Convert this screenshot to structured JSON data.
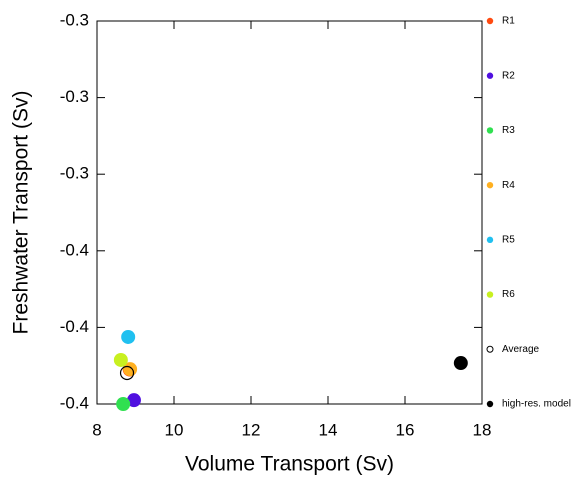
{
  "chart_data": {
    "type": "scatter",
    "x_label": "Volume Transport (Sv)",
    "y_label": "Freshwater Transport (Sv)",
    "xlim": [
      8,
      18
    ],
    "xticks": [
      8,
      10,
      12,
      14,
      16,
      18
    ],
    "ylim": [
      -0.4,
      -0.3
    ],
    "yticks": [
      -0.4,
      {
        "value": -0.38,
        "label": "-0.4"
      },
      {
        "value": -0.36,
        "label": "-0.4"
      },
      {
        "value": -0.34,
        "label": "-0.3"
      },
      {
        "value": -0.32,
        "label": "-0.3"
      },
      -0.3
    ],
    "legend": "right",
    "series": [
      {
        "name": "R1",
        "color": "#ff4a10",
        "x": [
          8.85
        ],
        "values": [
          -0.391
        ]
      },
      {
        "name": "R2",
        "color": "#5010e0",
        "x": [
          8.96
        ],
        "values": [
          -0.399
        ]
      },
      {
        "name": "R3",
        "color": "#30e050",
        "x": [
          8.68
        ],
        "values": [
          -0.4
        ]
      },
      {
        "name": "R4",
        "color": "#ffb020",
        "x": [
          8.86
        ],
        "values": [
          -0.3909
        ]
      },
      {
        "name": "R5",
        "color": "#20c0f0",
        "x": [
          8.81
        ],
        "values": [
          -0.3825
        ]
      },
      {
        "name": "R6",
        "color": "#c8f020",
        "x": [
          8.62
        ],
        "values": [
          -0.3885
        ]
      },
      {
        "name": "Average",
        "color": "#000000",
        "open": true,
        "x": [
          8.78
        ],
        "values": [
          -0.3919
        ]
      },
      {
        "name": "high-res. model",
        "color": "#000000",
        "x": [
          17.45
        ],
        "values": [
          -0.3893
        ]
      }
    ]
  }
}
